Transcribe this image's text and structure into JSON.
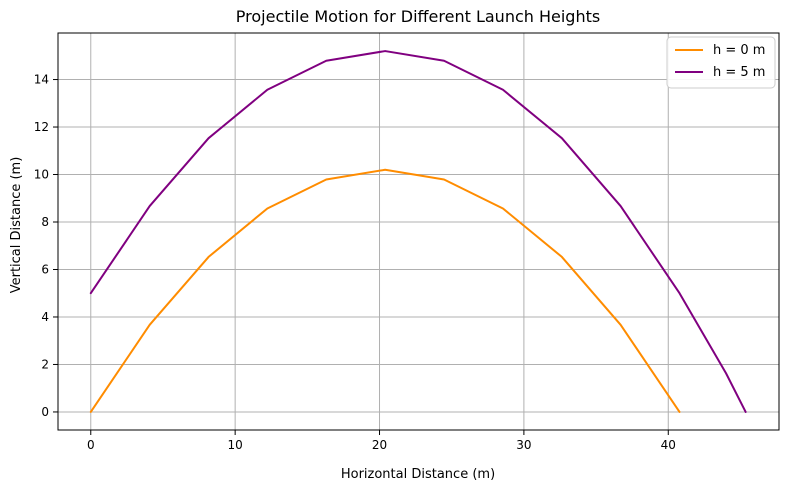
{
  "chart_data": {
    "type": "line",
    "title": "Projectile Motion for Different Launch Heights",
    "xlabel": "Horizontal Distance (m)",
    "ylabel": "Vertical Distance (m)",
    "xlim": [
      -2.27,
      47.67
    ],
    "ylim": [
      -0.76,
      15.96
    ],
    "x_ticks": [
      0,
      10,
      20,
      30,
      40
    ],
    "y_ticks": [
      0,
      2,
      4,
      6,
      8,
      10,
      12,
      14
    ],
    "grid": true,
    "legend_position": "top-right",
    "series": [
      {
        "name": "h = 0 m",
        "color": "#ff8c00",
        "points": [
          [
            0.0,
            0.0
          ],
          [
            4.08,
            3.67
          ],
          [
            8.16,
            6.53
          ],
          [
            12.23,
            8.57
          ],
          [
            16.31,
            9.79
          ],
          [
            20.39,
            10.2
          ],
          [
            24.47,
            9.79
          ],
          [
            28.55,
            8.57
          ],
          [
            32.63,
            6.53
          ],
          [
            36.7,
            3.67
          ],
          [
            40.78,
            0.0
          ]
        ]
      },
      {
        "name": "h = 5 m",
        "color": "#800080",
        "points": [
          [
            0.0,
            5.0
          ],
          [
            4.08,
            8.67
          ],
          [
            8.16,
            11.53
          ],
          [
            12.23,
            13.57
          ],
          [
            16.31,
            14.79
          ],
          [
            20.39,
            15.2
          ],
          [
            24.47,
            14.79
          ],
          [
            28.55,
            13.57
          ],
          [
            32.63,
            11.53
          ],
          [
            36.7,
            8.67
          ],
          [
            40.78,
            5.0
          ],
          [
            44.0,
            1.63
          ],
          [
            45.36,
            0.0
          ]
        ]
      }
    ]
  }
}
